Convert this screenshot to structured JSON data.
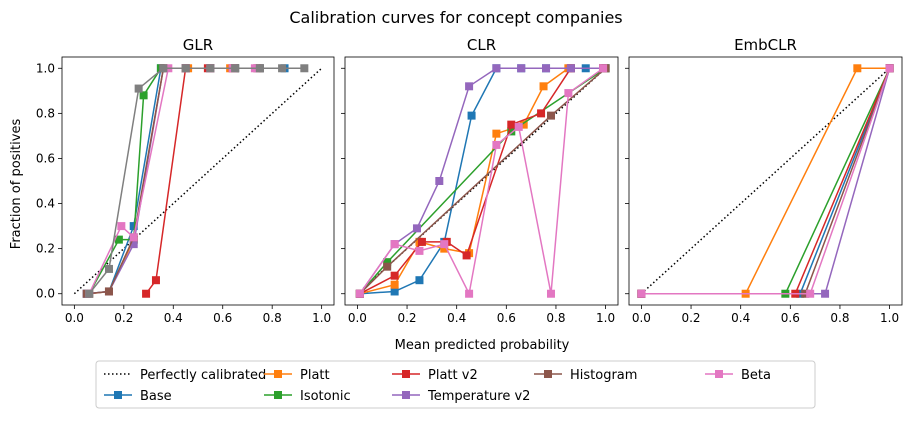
{
  "figure": {
    "title": "Calibration curves for concept companies",
    "xlabel": "Mean predicted probability",
    "ylabel": "Fraction of positives"
  },
  "colors": {
    "Perfectly calibrated": "#000000",
    "Base": "#1f77b4",
    "Platt": "#ff7f0e",
    "Isotonic": "#2ca02c",
    "Platt v2": "#d62728",
    "Temperature v2": "#9467bd",
    "Histogram": "#8c564b",
    "Beta": "#e377c2"
  },
  "legend": {
    "placement": "bottom-center",
    "columns": [
      [
        "Perfectly calibrated",
        "Base"
      ],
      [
        "Platt",
        "Isotonic"
      ],
      [
        "Platt v2",
        "Temperature v2"
      ],
      [
        "Histogram"
      ],
      [
        "Beta"
      ]
    ]
  },
  "chart_data": [
    {
      "type": "line",
      "title": "GLR",
      "xlim": [
        -0.05,
        1.05
      ],
      "ylim": [
        -0.05,
        1.05
      ],
      "xticks": [
        "0.0",
        "0.2",
        "0.4",
        "0.6",
        "0.8",
        "1.0"
      ],
      "yticks": [
        "0.0",
        "0.2",
        "0.4",
        "0.6",
        "0.8",
        "1.0"
      ],
      "grid": false,
      "series": [
        {
          "name": "Base",
          "x": [
            0.05,
            0.14,
            0.24,
            0.35,
            0.45,
            0.55,
            0.65,
            0.75,
            0.85
          ],
          "y": [
            0.0,
            0.01,
            0.3,
            1.0,
            1.0,
            1.0,
            1.0,
            1.0,
            1.0
          ]
        },
        {
          "name": "Platt",
          "x": [
            0.06,
            0.14,
            0.24,
            0.36,
            0.46,
            0.55,
            0.63,
            0.74
          ],
          "y": [
            0.0,
            0.01,
            0.24,
            1.0,
            1.0,
            1.0,
            1.0,
            1.0
          ]
        },
        {
          "name": "Isotonic",
          "x": [
            0.06,
            0.18,
            0.24,
            0.28,
            0.35,
            0.45,
            0.55,
            0.65
          ],
          "y": [
            0.0,
            0.24,
            0.24,
            0.88,
            1.0,
            1.0,
            1.0,
            1.0
          ]
        },
        {
          "name": "Platt v2",
          "x": [
            0.29,
            0.33,
            0.45,
            0.54,
            0.64
          ],
          "y": [
            0.0,
            0.06,
            1.0,
            1.0,
            1.0
          ]
        },
        {
          "name": "Temperature v2",
          "x": [
            0.05,
            0.14,
            0.24,
            0.36,
            0.45,
            0.55,
            0.65,
            0.74
          ],
          "y": [
            0.0,
            0.01,
            0.22,
            1.0,
            1.0,
            1.0,
            1.0,
            1.0
          ]
        },
        {
          "name": "Histogram",
          "x": [
            0.05,
            0.14,
            0.24,
            0.36,
            0.45,
            0.55,
            0.65,
            0.75
          ],
          "y": [
            0.0,
            0.01,
            0.25,
            1.0,
            1.0,
            1.0,
            1.0,
            1.0
          ]
        },
        {
          "name": "Beta",
          "x": [
            0.06,
            0.19,
            0.24,
            0.38,
            0.45,
            0.55,
            0.64,
            0.73
          ],
          "y": [
            0.0,
            0.3,
            0.25,
            1.0,
            1.0,
            1.0,
            1.0,
            1.0
          ]
        },
        {
          "name": "Gray",
          "color": "#7f7f7f",
          "x": [
            0.06,
            0.14,
            0.26,
            0.36,
            0.45,
            0.55,
            0.65,
            0.75,
            0.84,
            0.93
          ],
          "y": [
            0.0,
            0.11,
            0.91,
            1.0,
            1.0,
            1.0,
            1.0,
            1.0,
            1.0,
            1.0
          ]
        }
      ]
    },
    {
      "type": "line",
      "title": "CLR",
      "xlim": [
        -0.05,
        1.05
      ],
      "ylim": [
        -0.05,
        1.05
      ],
      "xticks": [
        "0.0",
        "0.2",
        "0.4",
        "0.6",
        "0.8",
        "1.0"
      ],
      "yticks": [
        "0.0",
        "0.2",
        "0.4",
        "0.6",
        "0.8",
        "1.0"
      ],
      "grid": false,
      "series": [
        {
          "name": "Base",
          "x": [
            0.01,
            0.15,
            0.25,
            0.35,
            0.46,
            0.56,
            0.66,
            0.76,
            0.86,
            0.92,
            1.0
          ],
          "y": [
            0.0,
            0.01,
            0.06,
            0.23,
            0.79,
            1.0,
            1.0,
            1.0,
            1.0,
            1.0,
            1.0
          ]
        },
        {
          "name": "Platt",
          "x": [
            0.01,
            0.15,
            0.25,
            0.35,
            0.45,
            0.56,
            0.67,
            0.75,
            0.85,
            0.99
          ],
          "y": [
            0.0,
            0.04,
            0.23,
            0.2,
            0.18,
            0.71,
            0.75,
            0.92,
            1.0,
            1.0
          ]
        },
        {
          "name": "Isotonic",
          "x": [
            0.01,
            0.12,
            0.62,
            1.0
          ],
          "y": [
            0.0,
            0.14,
            0.72,
            1.0
          ]
        },
        {
          "name": "Platt v2",
          "x": [
            0.01,
            0.15,
            0.26,
            0.36,
            0.44,
            0.62,
            0.74,
            0.86,
            0.99
          ],
          "y": [
            0.0,
            0.08,
            0.23,
            0.23,
            0.17,
            0.75,
            0.8,
            1.0,
            1.0
          ]
        },
        {
          "name": "Temperature v2",
          "x": [
            0.01,
            0.15,
            0.24,
            0.33,
            0.45,
            0.56,
            0.66,
            0.76,
            0.86,
            0.99
          ],
          "y": [
            0.0,
            0.22,
            0.29,
            0.5,
            0.92,
            1.0,
            1.0,
            1.0,
            1.0,
            1.0
          ]
        },
        {
          "name": "Histogram",
          "x": [
            0.01,
            0.12,
            0.78,
            1.0
          ],
          "y": [
            0.0,
            0.12,
            0.79,
            1.0
          ]
        },
        {
          "name": "Beta",
          "x": [
            0.01,
            0.15,
            0.25,
            0.35,
            0.45,
            0.56,
            0.65,
            0.78,
            0.85,
            0.99
          ],
          "y": [
            0.0,
            0.22,
            0.19,
            0.22,
            0.0,
            0.66,
            0.74,
            0.0,
            0.89,
            1.0
          ]
        }
      ]
    },
    {
      "type": "line",
      "title": "EmbCLR",
      "xlim": [
        -0.05,
        1.05
      ],
      "ylim": [
        -0.05,
        1.05
      ],
      "xticks": [
        "0.0",
        "0.2",
        "0.4",
        "0.6",
        "0.8",
        "1.0"
      ],
      "yticks": [
        "0.0",
        "0.2",
        "0.4",
        "0.6",
        "0.8",
        "1.0"
      ],
      "grid": false,
      "series": [
        {
          "name": "Base",
          "x": [
            0.0,
            0.64,
            1.0
          ],
          "y": [
            0.0,
            0.0,
            1.0
          ]
        },
        {
          "name": "Platt",
          "x": [
            0.0,
            0.42,
            0.87,
            1.0
          ],
          "y": [
            0.0,
            0.0,
            1.0,
            1.0
          ]
        },
        {
          "name": "Isotonic",
          "x": [
            0.0,
            0.58,
            1.0
          ],
          "y": [
            0.0,
            0.0,
            1.0
          ]
        },
        {
          "name": "Platt v2",
          "x": [
            0.0,
            0.62,
            1.0
          ],
          "y": [
            0.0,
            0.0,
            1.0
          ]
        },
        {
          "name": "Temperature v2",
          "x": [
            0.0,
            0.74,
            1.0
          ],
          "y": [
            0.0,
            0.0,
            1.0
          ]
        },
        {
          "name": "Histogram",
          "x": [
            0.0,
            0.66,
            1.0
          ],
          "y": [
            0.0,
            0.0,
            1.0
          ]
        },
        {
          "name": "Beta",
          "x": [
            0.0,
            0.68,
            1.0
          ],
          "y": [
            0.0,
            0.0,
            1.0
          ]
        }
      ]
    }
  ]
}
